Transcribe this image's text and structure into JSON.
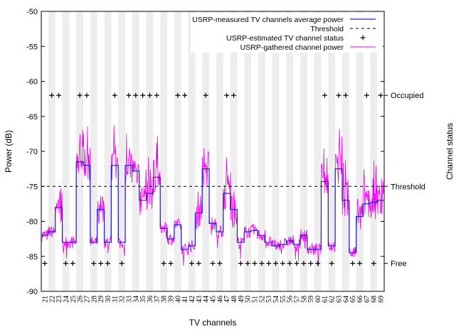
{
  "chart_data": {
    "type": "line",
    "xlabel": "TV channels",
    "ylabel": "Power (dB)",
    "y2label": "Channel status",
    "ylim": [
      -90,
      -50
    ],
    "yticks": [
      -90,
      -85,
      -80,
      -75,
      -70,
      -65,
      -60,
      -55,
      -50
    ],
    "threshold": -75,
    "channels": [
      21,
      22,
      23,
      24,
      25,
      26,
      27,
      28,
      29,
      30,
      31,
      32,
      33,
      34,
      35,
      36,
      37,
      38,
      39,
      40,
      41,
      42,
      43,
      44,
      45,
      46,
      47,
      48,
      49,
      50,
      51,
      52,
      53,
      54,
      55,
      56,
      57,
      58,
      59,
      60,
      61,
      62,
      63,
      64,
      65,
      66,
      67,
      68,
      69
    ],
    "right_axis_labels": [
      {
        "label": "Occupied",
        "value": -62
      },
      {
        "label": "Threshold",
        "value": -75
      },
      {
        "label": "Free",
        "value": -86
      }
    ],
    "legend": [
      {
        "name": "USRP-measured TV channels average power",
        "color": "#2020d0",
        "style": "solid"
      },
      {
        "name": "Threshold",
        "color": "#000000",
        "style": "dashed"
      },
      {
        "name": "USRP-estimated TV channel status",
        "color": "#000000",
        "style": "plus"
      },
      {
        "name": "USRP-gathered channel power",
        "color": "#ee00ee",
        "style": "solid"
      }
    ],
    "series": [
      {
        "name": "USRP-measured TV channels average power",
        "values": [
          -82,
          -81.5,
          -78,
          -83,
          -83,
          -71.5,
          -72,
          -83,
          -78.3,
          -83,
          -72,
          -83,
          -72,
          -72.8,
          -77,
          -76,
          -73.7,
          -81,
          -82.5,
          -80.5,
          -84,
          -83.5,
          -78.8,
          -72.5,
          -80.3,
          -81.5,
          -76,
          -78.3,
          -83,
          -81.5,
          -81.3,
          -82,
          -83,
          -83.5,
          -83.3,
          -82.8,
          -83.3,
          -82,
          -84,
          -84,
          -74.3,
          -83.5,
          -72.5,
          -77,
          -84.5,
          -79.3,
          -77.5,
          -77.3,
          -77
        ]
      }
    ],
    "status": [
      "Free",
      "Occupied",
      "Occupied",
      "Free",
      "Free",
      "Occupied",
      "Occupied",
      "Free",
      "Free",
      "Free",
      "Occupied",
      "Free",
      "Occupied",
      "Occupied",
      "Occupied",
      "Occupied",
      "Occupied",
      "Free",
      "Free",
      "Occupied",
      "Occupied",
      "Free",
      "Free",
      "Occupied",
      "Free",
      "Free",
      "Occupied",
      "Occupied",
      "Free",
      "Free",
      "Free",
      "Free",
      "Free",
      "Free",
      "Free",
      "Free",
      "Free",
      "Free",
      "Free",
      "Free",
      "Occupied",
      "Free",
      "Occupied",
      "Occupied",
      "Free",
      "Free",
      "Occupied",
      "Free",
      "Occupied"
    ]
  }
}
